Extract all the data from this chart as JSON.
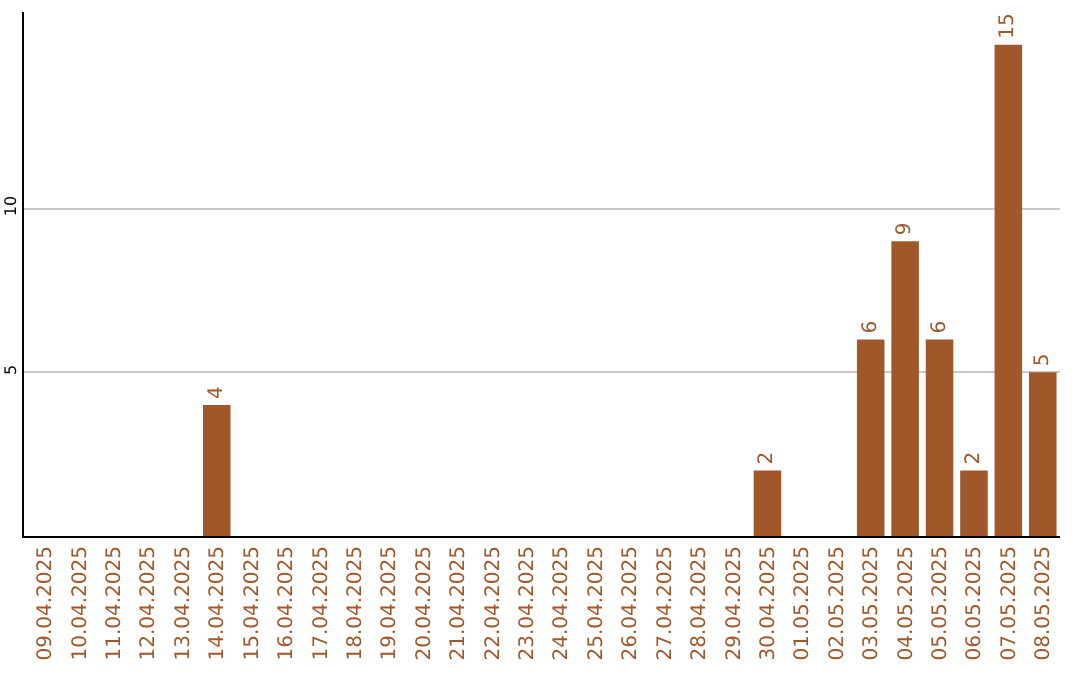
{
  "chart_data": {
    "type": "bar",
    "categories": [
      "09.04.2025",
      "10.04.2025",
      "11.04.2025",
      "12.04.2025",
      "13.04.2025",
      "14.04.2025",
      "15.04.2025",
      "16.04.2025",
      "17.04.2025",
      "18.04.2025",
      "19.04.2025",
      "20.04.2025",
      "21.04.2025",
      "22.04.2025",
      "23.04.2025",
      "24.04.2025",
      "25.04.2025",
      "26.04.2025",
      "27.04.2025",
      "28.04.2025",
      "29.04.2025",
      "30.04.2025",
      "01.05.2025",
      "02.05.2025",
      "03.05.2025",
      "04.05.2025",
      "05.05.2025",
      "06.05.2025",
      "07.05.2025",
      "08.05.2025"
    ],
    "values": [
      0,
      0,
      0,
      0,
      0,
      4,
      0,
      0,
      0,
      0,
      0,
      0,
      0,
      0,
      0,
      0,
      0,
      0,
      0,
      0,
      0,
      2,
      0,
      0,
      6,
      9,
      6,
      2,
      15,
      5
    ],
    "value_labels": [
      null,
      null,
      null,
      null,
      null,
      "4",
      null,
      null,
      null,
      null,
      null,
      null,
      null,
      null,
      null,
      null,
      null,
      null,
      null,
      null,
      null,
      "2",
      null,
      null,
      "6",
      "9",
      "6",
      "2",
      "15",
      "5"
    ],
    "color": "#a0582a",
    "ylim": [
      0,
      16
    ],
    "yticks": [
      5,
      10
    ],
    "grid": "y"
  }
}
